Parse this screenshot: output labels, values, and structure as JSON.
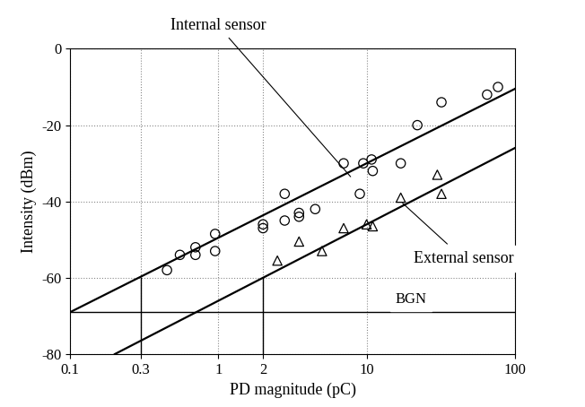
{
  "chart_data": {
    "type": "scatter",
    "x_label": "PD magnitude (pC)",
    "y_label": "Intensity (dBm)",
    "log": "x",
    "grid": true,
    "xlim": [
      0.1,
      100
    ],
    "xticks": [
      0.1,
      0.3,
      1,
      2,
      10,
      100
    ],
    "ylim": [
      -80,
      0
    ],
    "yticks": [
      -80,
      -60,
      -40,
      -20,
      0
    ],
    "annotations": [
      "Internal sensor",
      "External sensor",
      "BGN"
    ],
    "series": [
      {
        "type": "scatter",
        "marker": "circle",
        "color": "#000000",
        "x": [
          0.45,
          0.55,
          0.7,
          0.7,
          0.95,
          0.95,
          2,
          2,
          2.8,
          2.8,
          3.5,
          3.5,
          4.5,
          7,
          9,
          9.5,
          10.8,
          11,
          17,
          22,
          32,
          65,
          77
        ],
        "values": [
          -58,
          -54,
          -54,
          -52,
          -53,
          -48.5,
          -46,
          -47,
          -38,
          -45,
          -43,
          -44,
          -42,
          -30,
          -38,
          -30,
          -29,
          -32,
          -30,
          -20,
          -14,
          -12,
          -10
        ]
      },
      {
        "type": "scatter",
        "marker": "triangle",
        "color": "#000000",
        "x": [
          2.5,
          3.5,
          5,
          7,
          10,
          11,
          17,
          30,
          32
        ],
        "values": [
          -55.5,
          -50.5,
          -53,
          -47,
          -46,
          -46.5,
          -39,
          -33,
          -38
        ]
      },
      {
        "type": "line",
        "line_style": "solid",
        "color": "#000000",
        "x": [
          0.1,
          100
        ],
        "values": [
          -69,
          -10.5
        ]
      },
      {
        "type": "line",
        "line_style": "solid",
        "color": "#000000",
        "x": [
          0.2,
          100
        ],
        "values": [
          -80,
          -26
        ]
      },
      {
        "type": "line",
        "line_style": "solid",
        "color": "#000000",
        "x": [
          0.1,
          100
        ],
        "values": [
          -69,
          -69
        ]
      },
      {
        "type": "line",
        "line_style": "solid",
        "color": "#000000",
        "x": [
          0.3,
          0.3
        ],
        "values": [
          -80,
          -60
        ]
      },
      {
        "type": "line",
        "line_style": "solid",
        "color": "#000000",
        "x": [
          2,
          2
        ],
        "values": [
          -80,
          -60
        ]
      }
    ]
  }
}
